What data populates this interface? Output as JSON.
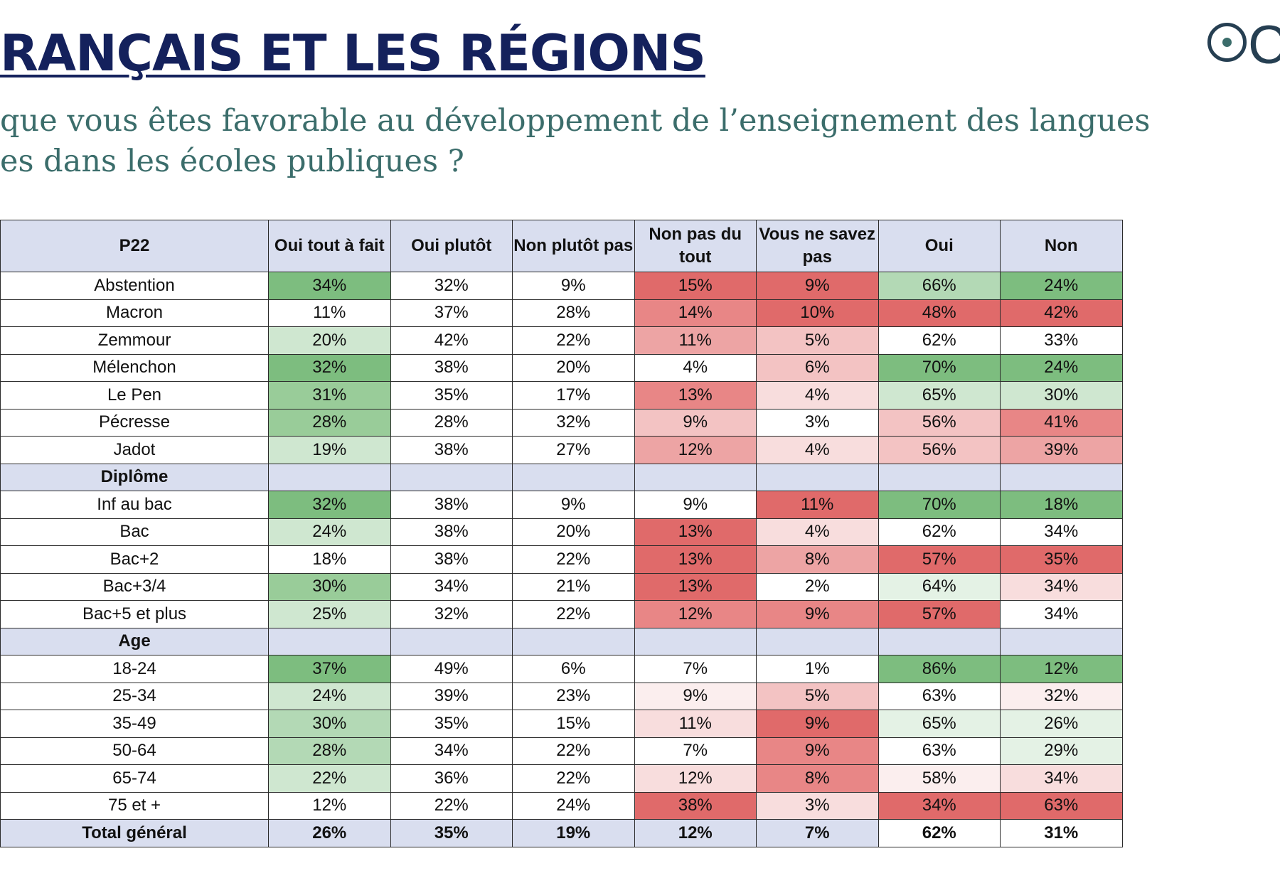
{
  "title": "RANÇAIS ET LES RÉGIONS",
  "question": {
    "line1": "que vous êtes favorable au développement de l’enseignement des langues",
    "line2": "es dans les écoles publiques ?"
  },
  "logo": {
    "text": "Clu"
  },
  "table": {
    "headers": [
      "P22",
      "Oui tout à fait",
      "Oui plutôt",
      "Non plutôt pas",
      "Non pas du tout",
      "Vous ne savez pas",
      "Oui",
      "Non"
    ],
    "rows": [
      {
        "label": "Abstention",
        "values": [
          "34%",
          "32%",
          "9%",
          "15%",
          "9%",
          "66%",
          "24%"
        ]
      },
      {
        "label": "Macron",
        "values": [
          "11%",
          "37%",
          "28%",
          "14%",
          "10%",
          "48%",
          "42%"
        ]
      },
      {
        "label": "Zemmour",
        "values": [
          "20%",
          "42%",
          "22%",
          "11%",
          "5%",
          "62%",
          "33%"
        ]
      },
      {
        "label": "Mélenchon",
        "values": [
          "32%",
          "38%",
          "20%",
          "4%",
          "6%",
          "70%",
          "24%"
        ]
      },
      {
        "label": "Le Pen",
        "values": [
          "31%",
          "35%",
          "17%",
          "13%",
          "4%",
          "65%",
          "30%"
        ]
      },
      {
        "label": "Pécresse",
        "values": [
          "28%",
          "28%",
          "32%",
          "9%",
          "3%",
          "56%",
          "41%"
        ]
      },
      {
        "label": "Jadot",
        "values": [
          "19%",
          "38%",
          "27%",
          "12%",
          "4%",
          "56%",
          "39%"
        ]
      },
      {
        "label": "Diplôme",
        "section": true
      },
      {
        "label": "Inf au bac",
        "values": [
          "32%",
          "38%",
          "9%",
          "9%",
          "11%",
          "70%",
          "18%"
        ]
      },
      {
        "label": "Bac",
        "values": [
          "24%",
          "38%",
          "20%",
          "13%",
          "4%",
          "62%",
          "34%"
        ]
      },
      {
        "label": "Bac+2",
        "values": [
          "18%",
          "38%",
          "22%",
          "13%",
          "8%",
          "57%",
          "35%"
        ]
      },
      {
        "label": "Bac+3/4",
        "values": [
          "30%",
          "34%",
          "21%",
          "13%",
          "2%",
          "64%",
          "34%"
        ]
      },
      {
        "label": "Bac+5 et plus",
        "values": [
          "25%",
          "32%",
          "22%",
          "12%",
          "9%",
          "57%",
          "34%"
        ]
      },
      {
        "label": "Age",
        "section": true
      },
      {
        "label": "18-24",
        "values": [
          "37%",
          "49%",
          "6%",
          "7%",
          "1%",
          "86%",
          "12%"
        ]
      },
      {
        "label": "25-34",
        "values": [
          "24%",
          "39%",
          "23%",
          "9%",
          "5%",
          "63%",
          "32%"
        ]
      },
      {
        "label": "35-49",
        "values": [
          "30%",
          "35%",
          "15%",
          "11%",
          "9%",
          "65%",
          "26%"
        ]
      },
      {
        "label": "50-64",
        "values": [
          "28%",
          "34%",
          "22%",
          "7%",
          "9%",
          "63%",
          "29%"
        ]
      },
      {
        "label": "65-74",
        "values": [
          "22%",
          "36%",
          "22%",
          "12%",
          "8%",
          "58%",
          "34%"
        ]
      },
      {
        "label": "75 et +",
        "values": [
          "12%",
          "22%",
          "24%",
          "38%",
          "3%",
          "34%",
          "63%"
        ]
      },
      {
        "label": "Total général",
        "values": [
          "26%",
          "35%",
          "19%",
          "12%",
          "7%",
          "62%",
          "31%"
        ],
        "total": true
      }
    ],
    "cell_colors": [
      [
        "g4",
        "w",
        "w",
        "r5",
        "r5",
        "g2",
        "g4"
      ],
      [
        "w",
        "w",
        "w",
        "r4",
        "r5",
        "r5",
        "r5"
      ],
      [
        "g1",
        "w",
        "w",
        "r3",
        "r2",
        "w",
        "w"
      ],
      [
        "g4",
        "w",
        "w",
        "w",
        "r2",
        "g4",
        "g4"
      ],
      [
        "g3",
        "w",
        "w",
        "r4",
        "r1",
        "g1",
        "g1"
      ],
      [
        "g3",
        "w",
        "w",
        "r2",
        "w",
        "r2",
        "r4"
      ],
      [
        "g1",
        "w",
        "w",
        "r3",
        "r1",
        "r2",
        "r3"
      ],
      null,
      [
        "g4",
        "w",
        "w",
        "w",
        "r5",
        "g4",
        "g4"
      ],
      [
        "g1",
        "w",
        "w",
        "r5",
        "r1",
        "w",
        "w"
      ],
      [
        "w",
        "w",
        "w",
        "r5",
        "r3",
        "r5",
        "r5"
      ],
      [
        "g3",
        "w",
        "w",
        "r5",
        "w",
        "g0",
        "r1"
      ],
      [
        "g1",
        "w",
        "w",
        "r4",
        "r4",
        "r5",
        "w"
      ],
      null,
      [
        "g4",
        "w",
        "w",
        "w",
        "w",
        "g4",
        "g4"
      ],
      [
        "g1",
        "w",
        "w",
        "r0",
        "r2",
        "w",
        "r0"
      ],
      [
        "g2",
        "w",
        "w",
        "r1",
        "r5",
        "g0",
        "g0"
      ],
      [
        "g2",
        "w",
        "w",
        "w",
        "r4",
        "w",
        "g0"
      ],
      [
        "g1",
        "w",
        "w",
        "r1",
        "r4",
        "r0",
        "r1"
      ],
      [
        "w",
        "w",
        "w",
        "r5",
        "r1",
        "r5",
        "r5"
      ],
      null
    ]
  }
}
